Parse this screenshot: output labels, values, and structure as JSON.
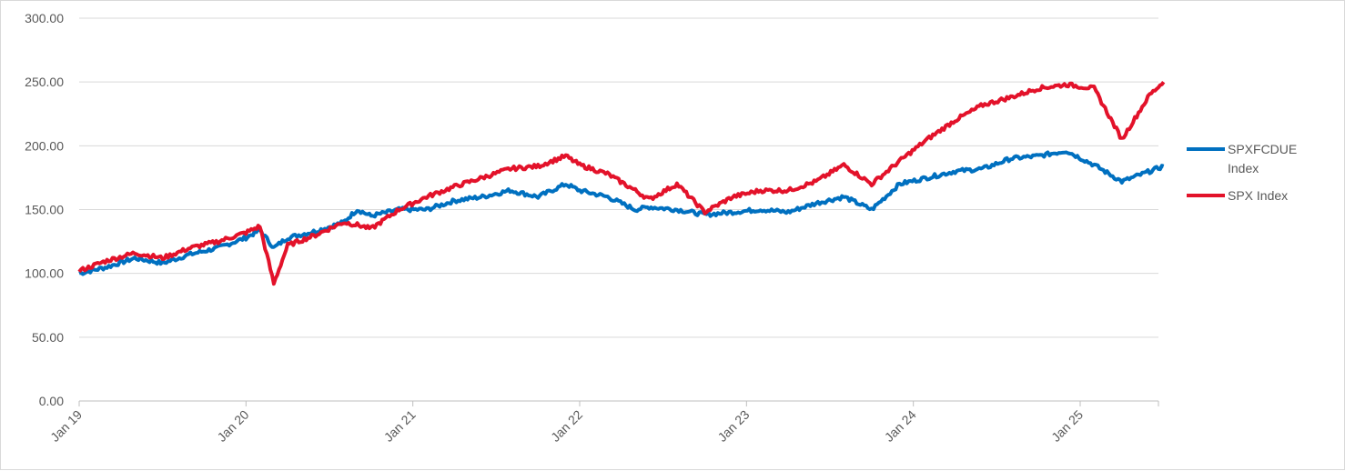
{
  "chart_data": {
    "type": "line",
    "title": "",
    "xlabel": "",
    "ylabel": "",
    "ylim": [
      0,
      300
    ],
    "yticks": [
      "0.00",
      "50.00",
      "100.00",
      "150.00",
      "200.00",
      "250.00",
      "300.00"
    ],
    "xticks": [
      "Jan 19",
      "Jan 20",
      "Jan 21",
      "Jan 22",
      "Jan 23",
      "Jan 24",
      "Jan 25"
    ],
    "grid": "horizontal",
    "legend": "right",
    "x": [
      "2019-01",
      "2019-03",
      "2019-05",
      "2019-07",
      "2019-09",
      "2019-11",
      "2020-01",
      "2020-02",
      "2020-03",
      "2020-04",
      "2020-06",
      "2020-08",
      "2020-09",
      "2020-10",
      "2020-12",
      "2021-02",
      "2021-04",
      "2021-06",
      "2021-08",
      "2021-10",
      "2021-12",
      "2022-01",
      "2022-03",
      "2022-05",
      "2022-06",
      "2022-08",
      "2022-10",
      "2022-12",
      "2023-02",
      "2023-04",
      "2023-06",
      "2023-08",
      "2023-10",
      "2023-12",
      "2024-02",
      "2024-04",
      "2024-06",
      "2024-08",
      "2024-10",
      "2024-12",
      "2025-02",
      "2025-04",
      "2025-06",
      "2025-07"
    ],
    "series": [
      {
        "name": "SPXFCDUE Index",
        "color": "#0070c0",
        "values": [
          100,
          105,
          112,
          108,
          115,
          120,
          128,
          134,
          120,
          128,
          133,
          140,
          150,
          145,
          150,
          150,
          157,
          160,
          165,
          160,
          170,
          165,
          160,
          150,
          152,
          150,
          146,
          148,
          150,
          148,
          155,
          160,
          150,
          170,
          175,
          180,
          182,
          190,
          192,
          196,
          185,
          172,
          180,
          184
        ]
      },
      {
        "name": "SPX Index",
        "color": "#e3122a",
        "values": [
          102,
          110,
          116,
          112,
          120,
          125,
          132,
          137,
          92,
          122,
          130,
          140,
          138,
          135,
          150,
          160,
          168,
          175,
          182,
          184,
          192,
          185,
          178,
          165,
          158,
          170,
          148,
          160,
          165,
          165,
          172,
          185,
          170,
          188,
          205,
          220,
          232,
          238,
          245,
          248,
          245,
          205,
          240,
          250
        ]
      }
    ]
  }
}
